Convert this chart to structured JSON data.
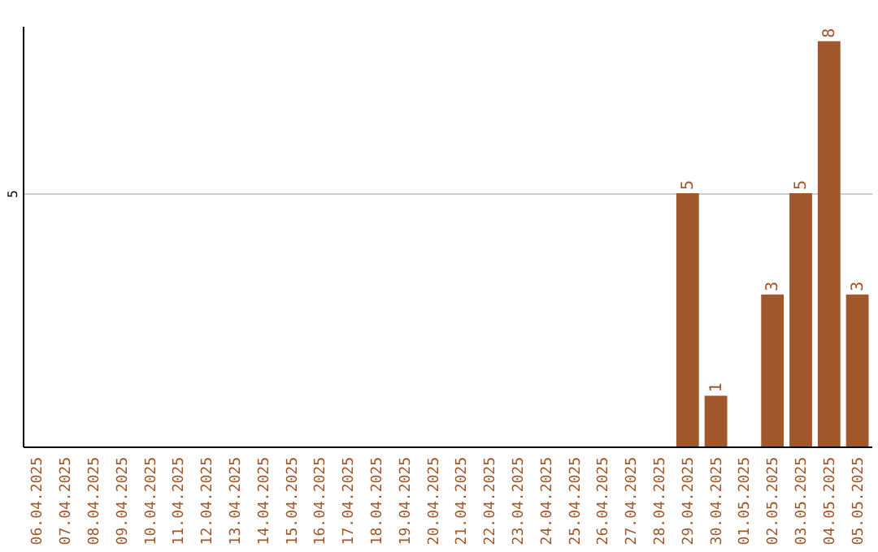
{
  "chart_data": {
    "type": "bar",
    "categories": [
      "06.04.2025",
      "07.04.2025",
      "08.04.2025",
      "09.04.2025",
      "10.04.2025",
      "11.04.2025",
      "12.04.2025",
      "13.04.2025",
      "14.04.2025",
      "15.04.2025",
      "16.04.2025",
      "17.04.2025",
      "18.04.2025",
      "19.04.2025",
      "20.04.2025",
      "21.04.2025",
      "22.04.2025",
      "23.04.2025",
      "24.04.2025",
      "25.04.2025",
      "26.04.2025",
      "27.04.2025",
      "28.04.2025",
      "29.04.2025",
      "30.04.2025",
      "01.05.2025",
      "02.05.2025",
      "03.05.2025",
      "04.05.2025",
      "05.05.2025"
    ],
    "values": [
      null,
      null,
      null,
      null,
      null,
      null,
      null,
      null,
      null,
      null,
      null,
      null,
      null,
      null,
      null,
      null,
      null,
      null,
      null,
      null,
      null,
      null,
      null,
      5,
      1,
      null,
      3,
      5,
      8,
      3
    ],
    "value_labels": [
      null,
      null,
      null,
      null,
      null,
      null,
      null,
      null,
      null,
      null,
      null,
      null,
      null,
      null,
      null,
      null,
      null,
      null,
      null,
      null,
      null,
      null,
      null,
      "5",
      "1",
      null,
      "3",
      "5",
      "8",
      "3"
    ],
    "color": "#a0572b",
    "ylim": [
      0,
      8.3
    ],
    "yticks": [
      5
    ],
    "grid": "y"
  }
}
